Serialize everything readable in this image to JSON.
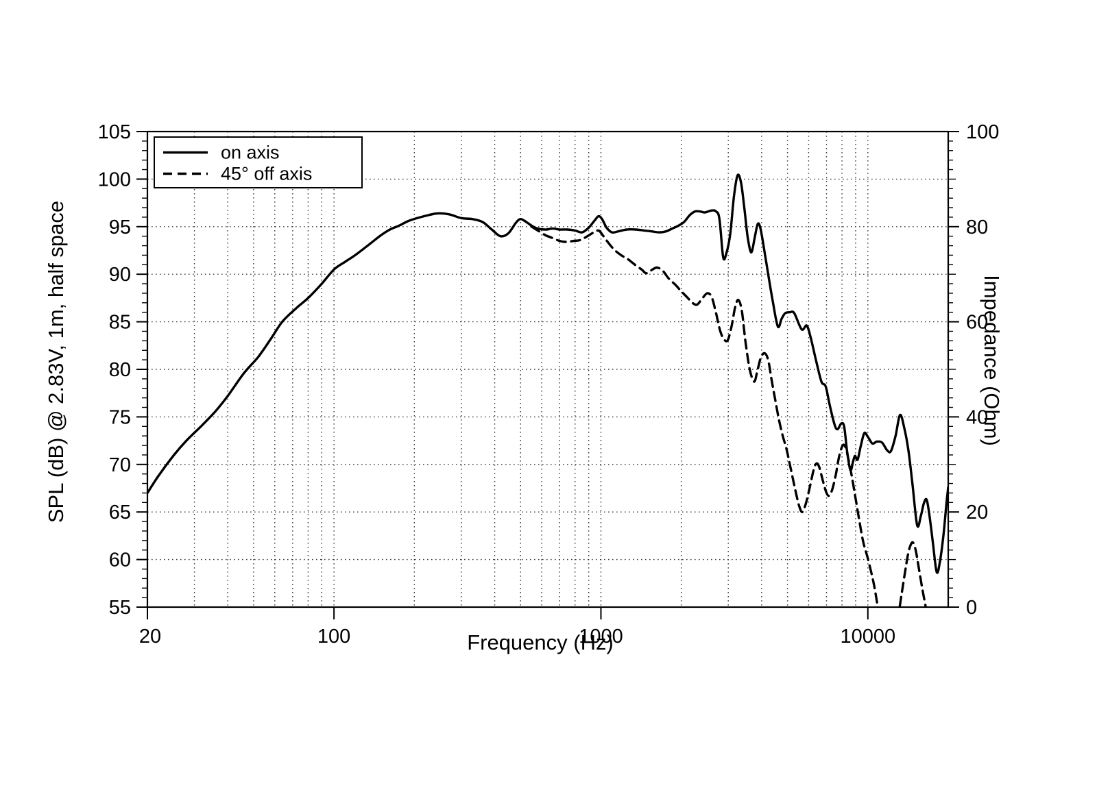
{
  "figure": {
    "background": "#ffffff",
    "foreground": "#000000",
    "grid_color": "#3c3c3c"
  },
  "chart_data": {
    "type": "line",
    "title": "",
    "x_axis": {
      "label": "Frequency (Hz)",
      "scale": "log",
      "min": 20,
      "max": 20000,
      "major_ticks": [
        {
          "value": 20,
          "label": "20"
        },
        {
          "value": 100,
          "label": "100"
        },
        {
          "value": 1000,
          "label": "1000"
        },
        {
          "value": 10000,
          "label": "10000"
        }
      ],
      "minor_gridlines": [
        30,
        40,
        50,
        60,
        70,
        80,
        90,
        200,
        300,
        400,
        500,
        600,
        700,
        800,
        900,
        2000,
        3000,
        4000,
        5000,
        6000,
        7000,
        8000,
        9000
      ]
    },
    "y_axis_left": {
      "label": "SPL (dB) @ 2.83V, 1m, half space",
      "min": 55,
      "max": 105,
      "major_step": 5,
      "minor_step": 1,
      "tick_labels": [
        "55",
        "60",
        "65",
        "70",
        "75",
        "80",
        "85",
        "90",
        "95",
        "100",
        "105"
      ]
    },
    "y_axis_right": {
      "label": "Impedance (Ohm)",
      "min": 0,
      "max": 100,
      "labeled_ticks": [
        0,
        20,
        40,
        60,
        80,
        100
      ],
      "medium_step": 10,
      "minor_step": 2
    },
    "grid": {
      "style": "dotted",
      "horizontal_every_db": 5
    },
    "legend": {
      "position": "top-left",
      "items": [
        {
          "label": "on axis",
          "line_style": "solid"
        },
        {
          "label": "45° off axis",
          "line_style": "dashed"
        }
      ]
    },
    "series": [
      {
        "name": "on axis",
        "line_style": "solid",
        "points": [
          [
            20,
            67.0
          ],
          [
            22,
            68.8
          ],
          [
            25,
            70.9
          ],
          [
            28,
            72.5
          ],
          [
            32,
            74.1
          ],
          [
            36,
            75.6
          ],
          [
            40,
            77.2
          ],
          [
            46,
            79.6
          ],
          [
            52,
            81.3
          ],
          [
            58,
            83.2
          ],
          [
            64,
            85.0
          ],
          [
            72,
            86.4
          ],
          [
            80,
            87.5
          ],
          [
            90,
            89.0
          ],
          [
            100,
            90.5
          ],
          [
            110,
            91.3
          ],
          [
            120,
            92.0
          ],
          [
            135,
            93.1
          ],
          [
            150,
            94.1
          ],
          [
            162,
            94.7
          ],
          [
            175,
            95.1
          ],
          [
            190,
            95.6
          ],
          [
            205,
            95.9
          ],
          [
            225,
            96.2
          ],
          [
            245,
            96.4
          ],
          [
            270,
            96.3
          ],
          [
            300,
            95.9
          ],
          [
            330,
            95.8
          ],
          [
            360,
            95.5
          ],
          [
            390,
            94.7
          ],
          [
            420,
            94.0
          ],
          [
            450,
            94.3
          ],
          [
            480,
            95.4
          ],
          [
            500,
            95.8
          ],
          [
            525,
            95.5
          ],
          [
            550,
            95.1
          ],
          [
            580,
            94.8
          ],
          [
            620,
            94.7
          ],
          [
            660,
            94.8
          ],
          [
            700,
            94.7
          ],
          [
            750,
            94.7
          ],
          [
            800,
            94.6
          ],
          [
            850,
            94.4
          ],
          [
            900,
            94.9
          ],
          [
            950,
            95.7
          ],
          [
            980,
            96.1
          ],
          [
            1010,
            95.8
          ],
          [
            1050,
            94.9
          ],
          [
            1100,
            94.4
          ],
          [
            1160,
            94.5
          ],
          [
            1250,
            94.7
          ],
          [
            1350,
            94.7
          ],
          [
            1450,
            94.6
          ],
          [
            1550,
            94.5
          ],
          [
            1650,
            94.4
          ],
          [
            1750,
            94.5
          ],
          [
            1850,
            94.8
          ],
          [
            1950,
            95.1
          ],
          [
            2050,
            95.5
          ],
          [
            2150,
            96.2
          ],
          [
            2250,
            96.6
          ],
          [
            2350,
            96.6
          ],
          [
            2450,
            96.5
          ],
          [
            2600,
            96.7
          ],
          [
            2700,
            96.6
          ],
          [
            2780,
            95.8
          ],
          [
            2870,
            91.8
          ],
          [
            2950,
            92.2
          ],
          [
            3050,
            94.2
          ],
          [
            3150,
            98.2
          ],
          [
            3250,
            100.4
          ],
          [
            3350,
            99.6
          ],
          [
            3450,
            96.8
          ],
          [
            3550,
            93.8
          ],
          [
            3660,
            92.3
          ],
          [
            3770,
            93.9
          ],
          [
            3870,
            95.3
          ],
          [
            3960,
            94.8
          ],
          [
            4100,
            92.4
          ],
          [
            4250,
            89.7
          ],
          [
            4400,
            87.2
          ],
          [
            4600,
            84.5
          ],
          [
            4750,
            85.3
          ],
          [
            4900,
            85.9
          ],
          [
            5100,
            86.0
          ],
          [
            5300,
            85.9
          ],
          [
            5650,
            84.2
          ],
          [
            5900,
            84.6
          ],
          [
            6100,
            83.4
          ],
          [
            6400,
            80.9
          ],
          [
            6700,
            78.7
          ],
          [
            6950,
            78.2
          ],
          [
            7200,
            76.2
          ],
          [
            7500,
            74.2
          ],
          [
            7700,
            73.7
          ],
          [
            7950,
            74.3
          ],
          [
            8150,
            74.0
          ],
          [
            8350,
            71.5
          ],
          [
            8600,
            69.4
          ],
          [
            8800,
            70.3
          ],
          [
            8950,
            70.9
          ],
          [
            9150,
            70.5
          ],
          [
            9400,
            71.9
          ],
          [
            9700,
            73.3
          ],
          [
            10000,
            72.9
          ],
          [
            10400,
            72.2
          ],
          [
            10800,
            72.4
          ],
          [
            11300,
            72.3
          ],
          [
            11800,
            71.5
          ],
          [
            12200,
            71.4
          ],
          [
            12700,
            73.0
          ],
          [
            13200,
            75.2
          ],
          [
            13700,
            73.8
          ],
          [
            14200,
            71.4
          ],
          [
            14700,
            67.9
          ],
          [
            15300,
            63.6
          ],
          [
            15800,
            64.6
          ],
          [
            16200,
            65.9
          ],
          [
            16600,
            66.3
          ],
          [
            17000,
            64.7
          ],
          [
            17500,
            61.9
          ],
          [
            18100,
            58.7
          ],
          [
            18600,
            59.7
          ],
          [
            19200,
            62.6
          ],
          [
            19700,
            65.9
          ],
          [
            20000,
            67.6
          ]
        ]
      },
      {
        "name": "45° off axis",
        "line_style": "dashed",
        "points": [
          [
            550,
            95.0
          ],
          [
            580,
            94.6
          ],
          [
            620,
            94.1
          ],
          [
            660,
            93.8
          ],
          [
            700,
            93.5
          ],
          [
            740,
            93.4
          ],
          [
            790,
            93.5
          ],
          [
            840,
            93.6
          ],
          [
            890,
            94.0
          ],
          [
            940,
            94.4
          ],
          [
            980,
            94.6
          ],
          [
            1010,
            94.2
          ],
          [
            1060,
            93.4
          ],
          [
            1120,
            92.6
          ],
          [
            1190,
            92.0
          ],
          [
            1260,
            91.6
          ],
          [
            1340,
            91.0
          ],
          [
            1420,
            90.5
          ],
          [
            1480,
            90.1
          ],
          [
            1560,
            90.5
          ],
          [
            1620,
            90.7
          ],
          [
            1700,
            90.4
          ],
          [
            1800,
            89.5
          ],
          [
            1900,
            88.9
          ],
          [
            2000,
            88.2
          ],
          [
            2100,
            87.6
          ],
          [
            2200,
            87.0
          ],
          [
            2290,
            86.8
          ],
          [
            2390,
            87.4
          ],
          [
            2500,
            88.0
          ],
          [
            2600,
            87.6
          ],
          [
            2700,
            85.9
          ],
          [
            2800,
            84.0
          ],
          [
            2900,
            83.1
          ],
          [
            2990,
            83.1
          ],
          [
            3090,
            84.6
          ],
          [
            3180,
            86.5
          ],
          [
            3270,
            87.3
          ],
          [
            3370,
            86.2
          ],
          [
            3480,
            82.9
          ],
          [
            3610,
            80.0
          ],
          [
            3750,
            78.7
          ],
          [
            3860,
            79.9
          ],
          [
            3970,
            81.2
          ],
          [
            4100,
            81.7
          ],
          [
            4230,
            81.0
          ],
          [
            4360,
            78.9
          ],
          [
            4510,
            76.6
          ],
          [
            4660,
            74.5
          ],
          [
            4810,
            72.9
          ],
          [
            4960,
            71.6
          ],
          [
            5120,
            69.8
          ],
          [
            5320,
            67.6
          ],
          [
            5520,
            65.7
          ],
          [
            5680,
            65.0
          ],
          [
            5860,
            65.9
          ],
          [
            6060,
            67.6
          ],
          [
            6260,
            69.4
          ],
          [
            6420,
            70.1
          ],
          [
            6580,
            69.7
          ],
          [
            6780,
            68.3
          ],
          [
            6980,
            67.1
          ],
          [
            7160,
            66.7
          ],
          [
            7360,
            67.4
          ],
          [
            7580,
            68.9
          ],
          [
            7800,
            70.8
          ],
          [
            8050,
            72.0
          ],
          [
            8250,
            71.8
          ],
          [
            8450,
            70.6
          ],
          [
            8700,
            68.8
          ],
          [
            8950,
            66.8
          ],
          [
            9250,
            64.4
          ],
          [
            9600,
            61.9
          ],
          [
            10000,
            60.1
          ],
          [
            10500,
            57.6
          ],
          [
            10900,
            55.0
          ],
          [
            11300,
            52.8
          ],
          [
            11900,
            51.5
          ],
          [
            12500,
            52.5
          ],
          [
            13000,
            54.2
          ],
          [
            13400,
            56.5
          ],
          [
            13800,
            58.8
          ],
          [
            14150,
            60.6
          ],
          [
            14450,
            61.5
          ],
          [
            14750,
            61.8
          ],
          [
            15100,
            61.0
          ],
          [
            15500,
            59.2
          ],
          [
            16000,
            56.9
          ],
          [
            16500,
            54.9
          ],
          [
            16800,
            53.5
          ]
        ]
      }
    ]
  }
}
